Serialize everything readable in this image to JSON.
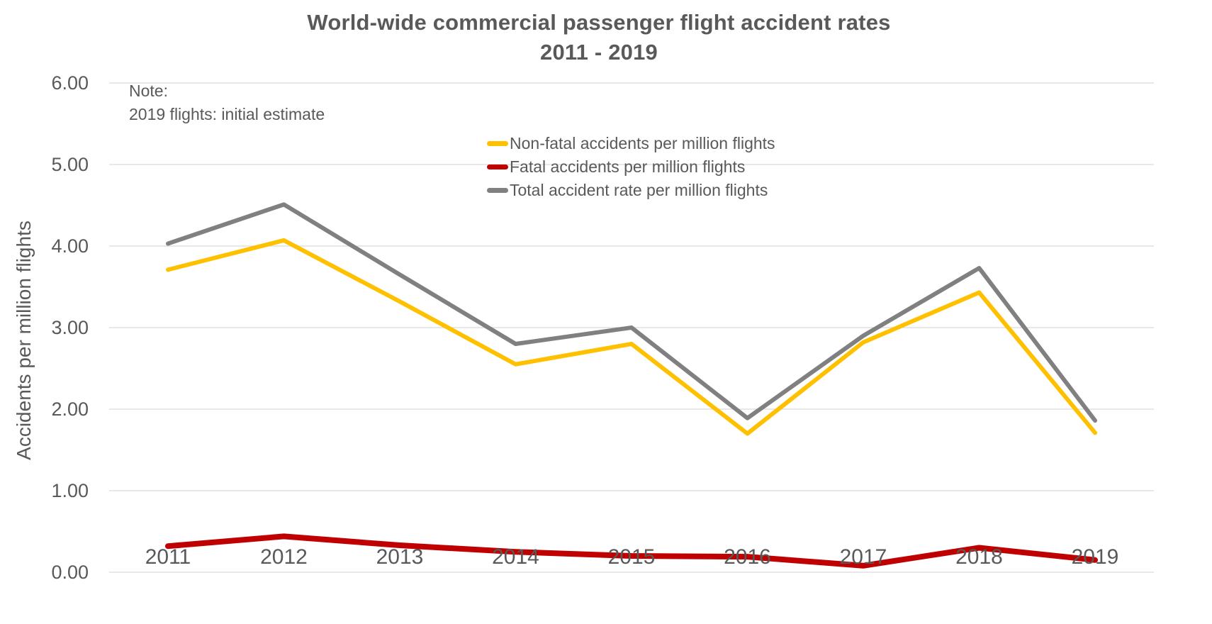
{
  "title": "World-wide commercial passenger flight accident rates",
  "subtitle": "2011 - 2019",
  "note": {
    "line1": "Note:",
    "line2": "2019 flights: initial estimate"
  },
  "y_axis": {
    "title": "Accidents per million flights",
    "tick_labels": [
      "6.00",
      "5.00",
      "4.00",
      "3.00",
      "2.00",
      "1.00",
      "0.00"
    ]
  },
  "x_axis": {
    "tick_labels": [
      "2011",
      "2012",
      "2013",
      "2014",
      "2015",
      "2016",
      "2017",
      "2018",
      "2019"
    ]
  },
  "colors": {
    "non_fatal": "#FFC000",
    "fatal": "#C00000",
    "total": "#808080",
    "text": "#595959",
    "gridline": "#D9D9D9"
  },
  "chart_data": {
    "type": "line",
    "title": "World-wide commercial passenger flight accident rates 2011 - 2019",
    "xlabel": "",
    "ylabel": "Accidents per million flights",
    "x": [
      2011,
      2012,
      2013,
      2014,
      2015,
      2016,
      2017,
      2018,
      2019
    ],
    "ylim": [
      0,
      6
    ],
    "y_tick_step": 1,
    "grid": true,
    "legend_position": "upper-center",
    "annotation": "Note: 2019 flights: initial estimate",
    "series": [
      {
        "key": "non-fatal",
        "name": "Non-fatal accidents per million flights",
        "color": "#FFC000",
        "values": [
          3.71,
          4.07,
          3.32,
          2.55,
          2.8,
          1.7,
          2.82,
          3.43,
          1.71
        ]
      },
      {
        "key": "fatal",
        "name": "Fatal accidents per million flights",
        "color": "#C00000",
        "values": [
          0.32,
          0.44,
          0.33,
          0.25,
          0.2,
          0.19,
          0.08,
          0.3,
          0.15
        ]
      },
      {
        "key": "total",
        "name": "Total accident rate per million flights",
        "color": "#808080",
        "values": [
          4.03,
          4.51,
          3.65,
          2.8,
          3.0,
          1.89,
          2.9,
          3.73,
          1.86
        ]
      }
    ]
  }
}
